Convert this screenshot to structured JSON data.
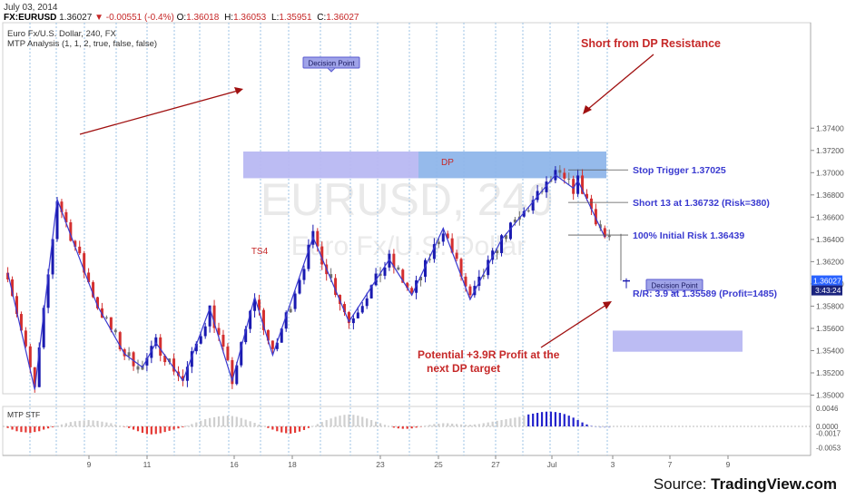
{
  "header": {
    "date": "July 03, 2014",
    "symbol": "FX:EURUSD",
    "last": "1.36027",
    "change_arrow": "▼",
    "change": "-0.00551 (-0.4%)",
    "ohlc": [
      {
        "label": "O:",
        "value": "1.36018"
      },
      {
        "label": "H:",
        "value": "1.36053"
      },
      {
        "label": "L:",
        "value": "1.35951"
      },
      {
        "label": "C:",
        "value": "1.36027"
      }
    ],
    "instrument": "Euro Fx/U.S. Dollar, 240, FX",
    "indicator": "MTP Analysis (1, 1, 2, true, false, false)"
  },
  "watermark": {
    "symbol": "EURUSD, 240",
    "name": "Euro Fx/U.S. Dollar"
  },
  "source": {
    "prefix": "Source: ",
    "brand": "TradingView.com"
  },
  "colors": {
    "up_candle": "#1a1ab0",
    "down_candle": "#d32f2f",
    "neutral_candle": "#707070",
    "zigzag": "#3a3ad0",
    "zone_light": "#b8b8f2",
    "zone_dark": "#8fb6ea",
    "annotation_red": "#c62828",
    "annotation_blue": "#3a3ad0",
    "last_price_tag": "#2962ff",
    "grid_dotted": "#9ec3e6"
  },
  "chart_data": [
    {
      "type": "candlestick",
      "title": "Euro Fx/U.S. Dollar, 240, FX",
      "x_tick_labels": [
        "9",
        "11",
        "16",
        "18",
        "23",
        "25",
        "27",
        "Jul",
        "3",
        "7",
        "9"
      ],
      "y_tick_labels": [
        "1.37400",
        "1.37200",
        "1.37000",
        "1.36800",
        "1.36600",
        "1.36400",
        "1.36200",
        "1.36000",
        "1.35800",
        "1.35600",
        "1.35400",
        "1.35200",
        "1.35000"
      ],
      "ylim": [
        1.349,
        1.3758
      ],
      "last_price": 1.36027,
      "last_price_label": "1.36027",
      "countdown_label": "3:43:24",
      "zigzag_points": [
        {
          "i": 0,
          "y": 1.361
        },
        {
          "i": 6,
          "y": 1.3505
        },
        {
          "i": 11,
          "y": 1.3676
        },
        {
          "i": 20,
          "y": 1.358
        },
        {
          "i": 26,
          "y": 1.3537
        },
        {
          "i": 30,
          "y": 1.3525
        },
        {
          "i": 33,
          "y": 1.3547
        },
        {
          "i": 39,
          "y": 1.3513
        },
        {
          "i": 45,
          "y": 1.3578
        },
        {
          "i": 50,
          "y": 1.3513
        },
        {
          "i": 55,
          "y": 1.3588
        },
        {
          "i": 59,
          "y": 1.3536
        },
        {
          "i": 68,
          "y": 1.3642
        },
        {
          "i": 76,
          "y": 1.3566
        },
        {
          "i": 85,
          "y": 1.3622
        },
        {
          "i": 90,
          "y": 1.359
        },
        {
          "i": 97,
          "y": 1.365
        },
        {
          "i": 103,
          "y": 1.3586
        },
        {
          "i": 110,
          "y": 1.364
        },
        {
          "i": 122,
          "y": 1.3698
        },
        {
          "i": 126,
          "y": 1.3686
        },
        {
          "i": 127,
          "y": 1.3693
        },
        {
          "i": 133,
          "y": 1.3642
        }
      ],
      "annotations": [
        {
          "text": "Short from DP Resistance",
          "color": "red"
        },
        {
          "text": "Stop Trigger 1.37025",
          "color": "blue",
          "price": 1.37025
        },
        {
          "text": "Short 13 at 1.36732 (Risk=380)",
          "color": "blue",
          "price": 1.36732
        },
        {
          "text": "100% Initial Risk 1.36439",
          "color": "blue",
          "price": 1.36439
        },
        {
          "text": "R/R: 3.9 at 1.35589 (Profit=1485)",
          "color": "blue",
          "price": 1.35589
        },
        {
          "text": "Potential +3.9R Profit at the",
          "color": "red"
        },
        {
          "text": "next DP target",
          "color": "red"
        },
        {
          "text": "DP",
          "color": "red",
          "at_bar": 96,
          "price": 1.365
        },
        {
          "text": "TS4",
          "color": "red",
          "at_bar": 55,
          "price": 1.3588
        }
      ],
      "zones": [
        {
          "label": "Decision Point",
          "low": 1.3695,
          "high": 1.3719
        },
        {
          "label": "Decision Point",
          "low": 1.3539,
          "high": 1.3558
        }
      ]
    },
    {
      "type": "bar",
      "title": "MTP STF",
      "y_tick_labels": [
        "0.0046",
        "0.0000",
        "-0.0017",
        "-0.0053"
      ],
      "ylim": [
        -0.0065,
        0.0055
      ],
      "values": [
        -0.0004,
        -0.0008,
        -0.0012,
        -0.0014,
        -0.0015,
        -0.0016,
        -0.0014,
        -0.0012,
        -0.0008,
        -0.0005,
        -0.0002,
        0.0002,
        0.0005,
        0.0008,
        0.0011,
        0.0013,
        0.0014,
        0.0015,
        0.0016,
        0.0015,
        0.0014,
        0.0012,
        0.001,
        0.0008,
        0.0005,
        0.0002,
        -0.0001,
        -0.0004,
        -0.0008,
        -0.0012,
        -0.0016,
        -0.0019,
        -0.002,
        -0.0019,
        -0.0017,
        -0.0014,
        -0.0011,
        -0.0008,
        -0.0005,
        -0.0002,
        0.0002,
        0.0006,
        0.001,
        0.0014,
        0.0018,
        0.0021,
        0.0023,
        0.0025,
        0.0026,
        0.0027,
        0.0026,
        0.0024,
        0.0021,
        0.0017,
        0.0013,
        0.0009,
        0.0005,
        0.0001,
        -0.0004,
        -0.0008,
        -0.0012,
        -0.0015,
        -0.0017,
        -0.0018,
        -0.0016,
        -0.0013,
        -0.0009,
        -0.0004,
        0.0001,
        0.0006,
        0.0011,
        0.0016,
        0.002,
        0.0024,
        0.0027,
        0.0029,
        0.003,
        0.0029,
        0.0027,
        0.0024,
        0.002,
        0.0016,
        0.0012,
        0.0008,
        0.0004,
        0.0,
        -0.0003,
        -0.0005,
        -0.0006,
        -0.0006,
        -0.0005,
        -0.0003,
        -0.0001,
        0.0002,
        0.0004,
        0.0006,
        0.0007,
        0.0008,
        0.0008,
        0.0007,
        0.0006,
        0.0005,
        0.0004,
        0.0004,
        0.0005,
        0.0006,
        0.0008,
        0.001,
        0.0012,
        0.0014,
        0.0016,
        0.0018,
        0.002,
        0.0022,
        0.0024,
        0.0027,
        0.003,
        0.0032,
        0.0034,
        0.0036,
        0.0037,
        0.0037,
        0.0036,
        0.0034,
        0.0031,
        0.0027,
        0.0022,
        0.0016,
        0.001,
        0.0005,
        0.0001,
        -0.0002,
        -0.0003,
        -0.0003,
        -0.0003
      ]
    }
  ]
}
